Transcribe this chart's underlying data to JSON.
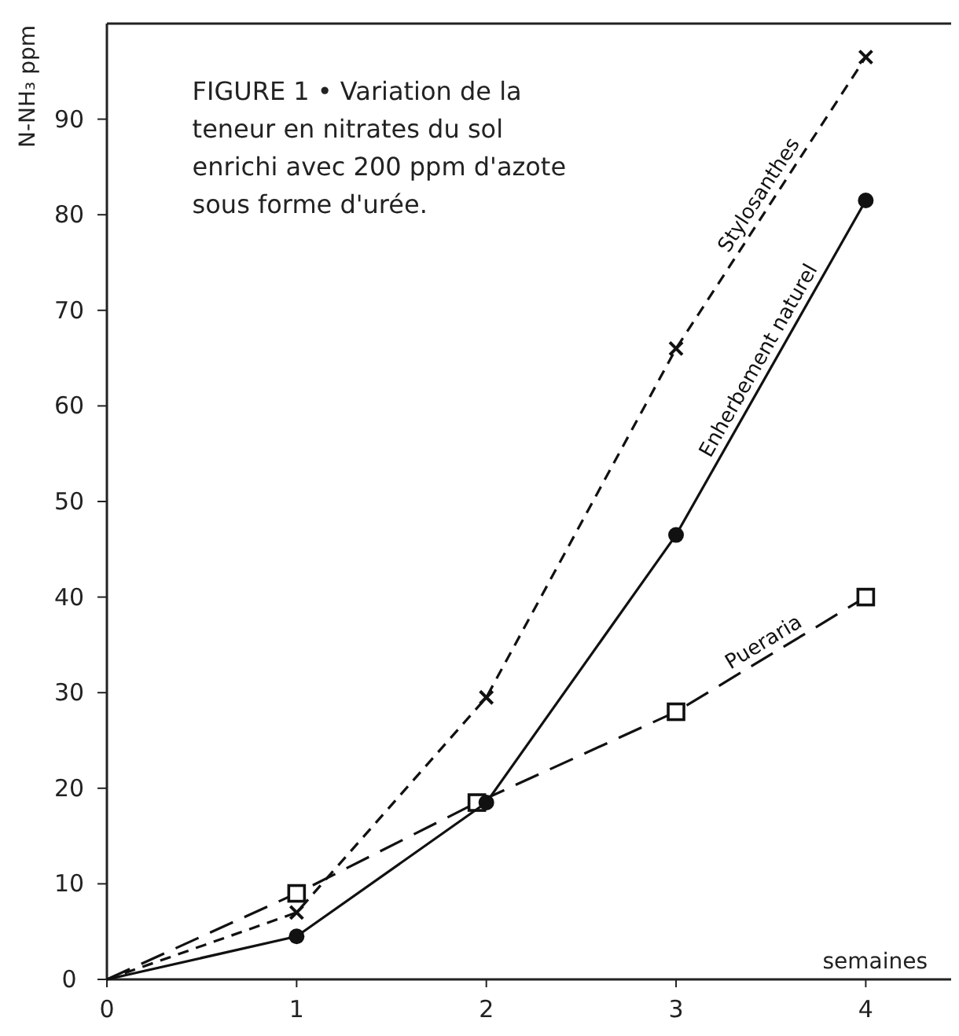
{
  "chart_data": {
    "type": "line",
    "title": "FIGURE 1 • Variation de la teneur en nitrates du sol enrichi avec 200 ppm d'azote sous forme d'urée.",
    "xlabel": "semaines",
    "ylabel": "N-NH₃ ppm",
    "x": [
      0,
      1,
      2,
      3,
      4
    ],
    "xlim": [
      0,
      4.45
    ],
    "ylim": [
      0,
      100
    ],
    "xticks": [
      0,
      1,
      2,
      3,
      4
    ],
    "yticks": [
      0,
      10,
      20,
      30,
      40,
      50,
      60,
      70,
      80,
      90
    ],
    "grid": false,
    "legend": false,
    "series": [
      {
        "name": "Stylosanthes",
        "color": "#111111",
        "marker": "cross",
        "line_style": "dashed",
        "values": [
          0,
          7,
          29.5,
          66,
          96.5
        ]
      },
      {
        "name": "Enherbement naturel",
        "color": "#111111",
        "marker": "circle",
        "line_style": "solid",
        "values": [
          0,
          4.5,
          18.5,
          46.5,
          81.5
        ]
      },
      {
        "name": "Pueraria",
        "color": "#111111",
        "marker": "square",
        "line_style": "dashed",
        "x": [
          0,
          1,
          1.95,
          3,
          4
        ],
        "values": [
          0,
          9,
          18.5,
          28,
          40
        ]
      }
    ]
  }
}
